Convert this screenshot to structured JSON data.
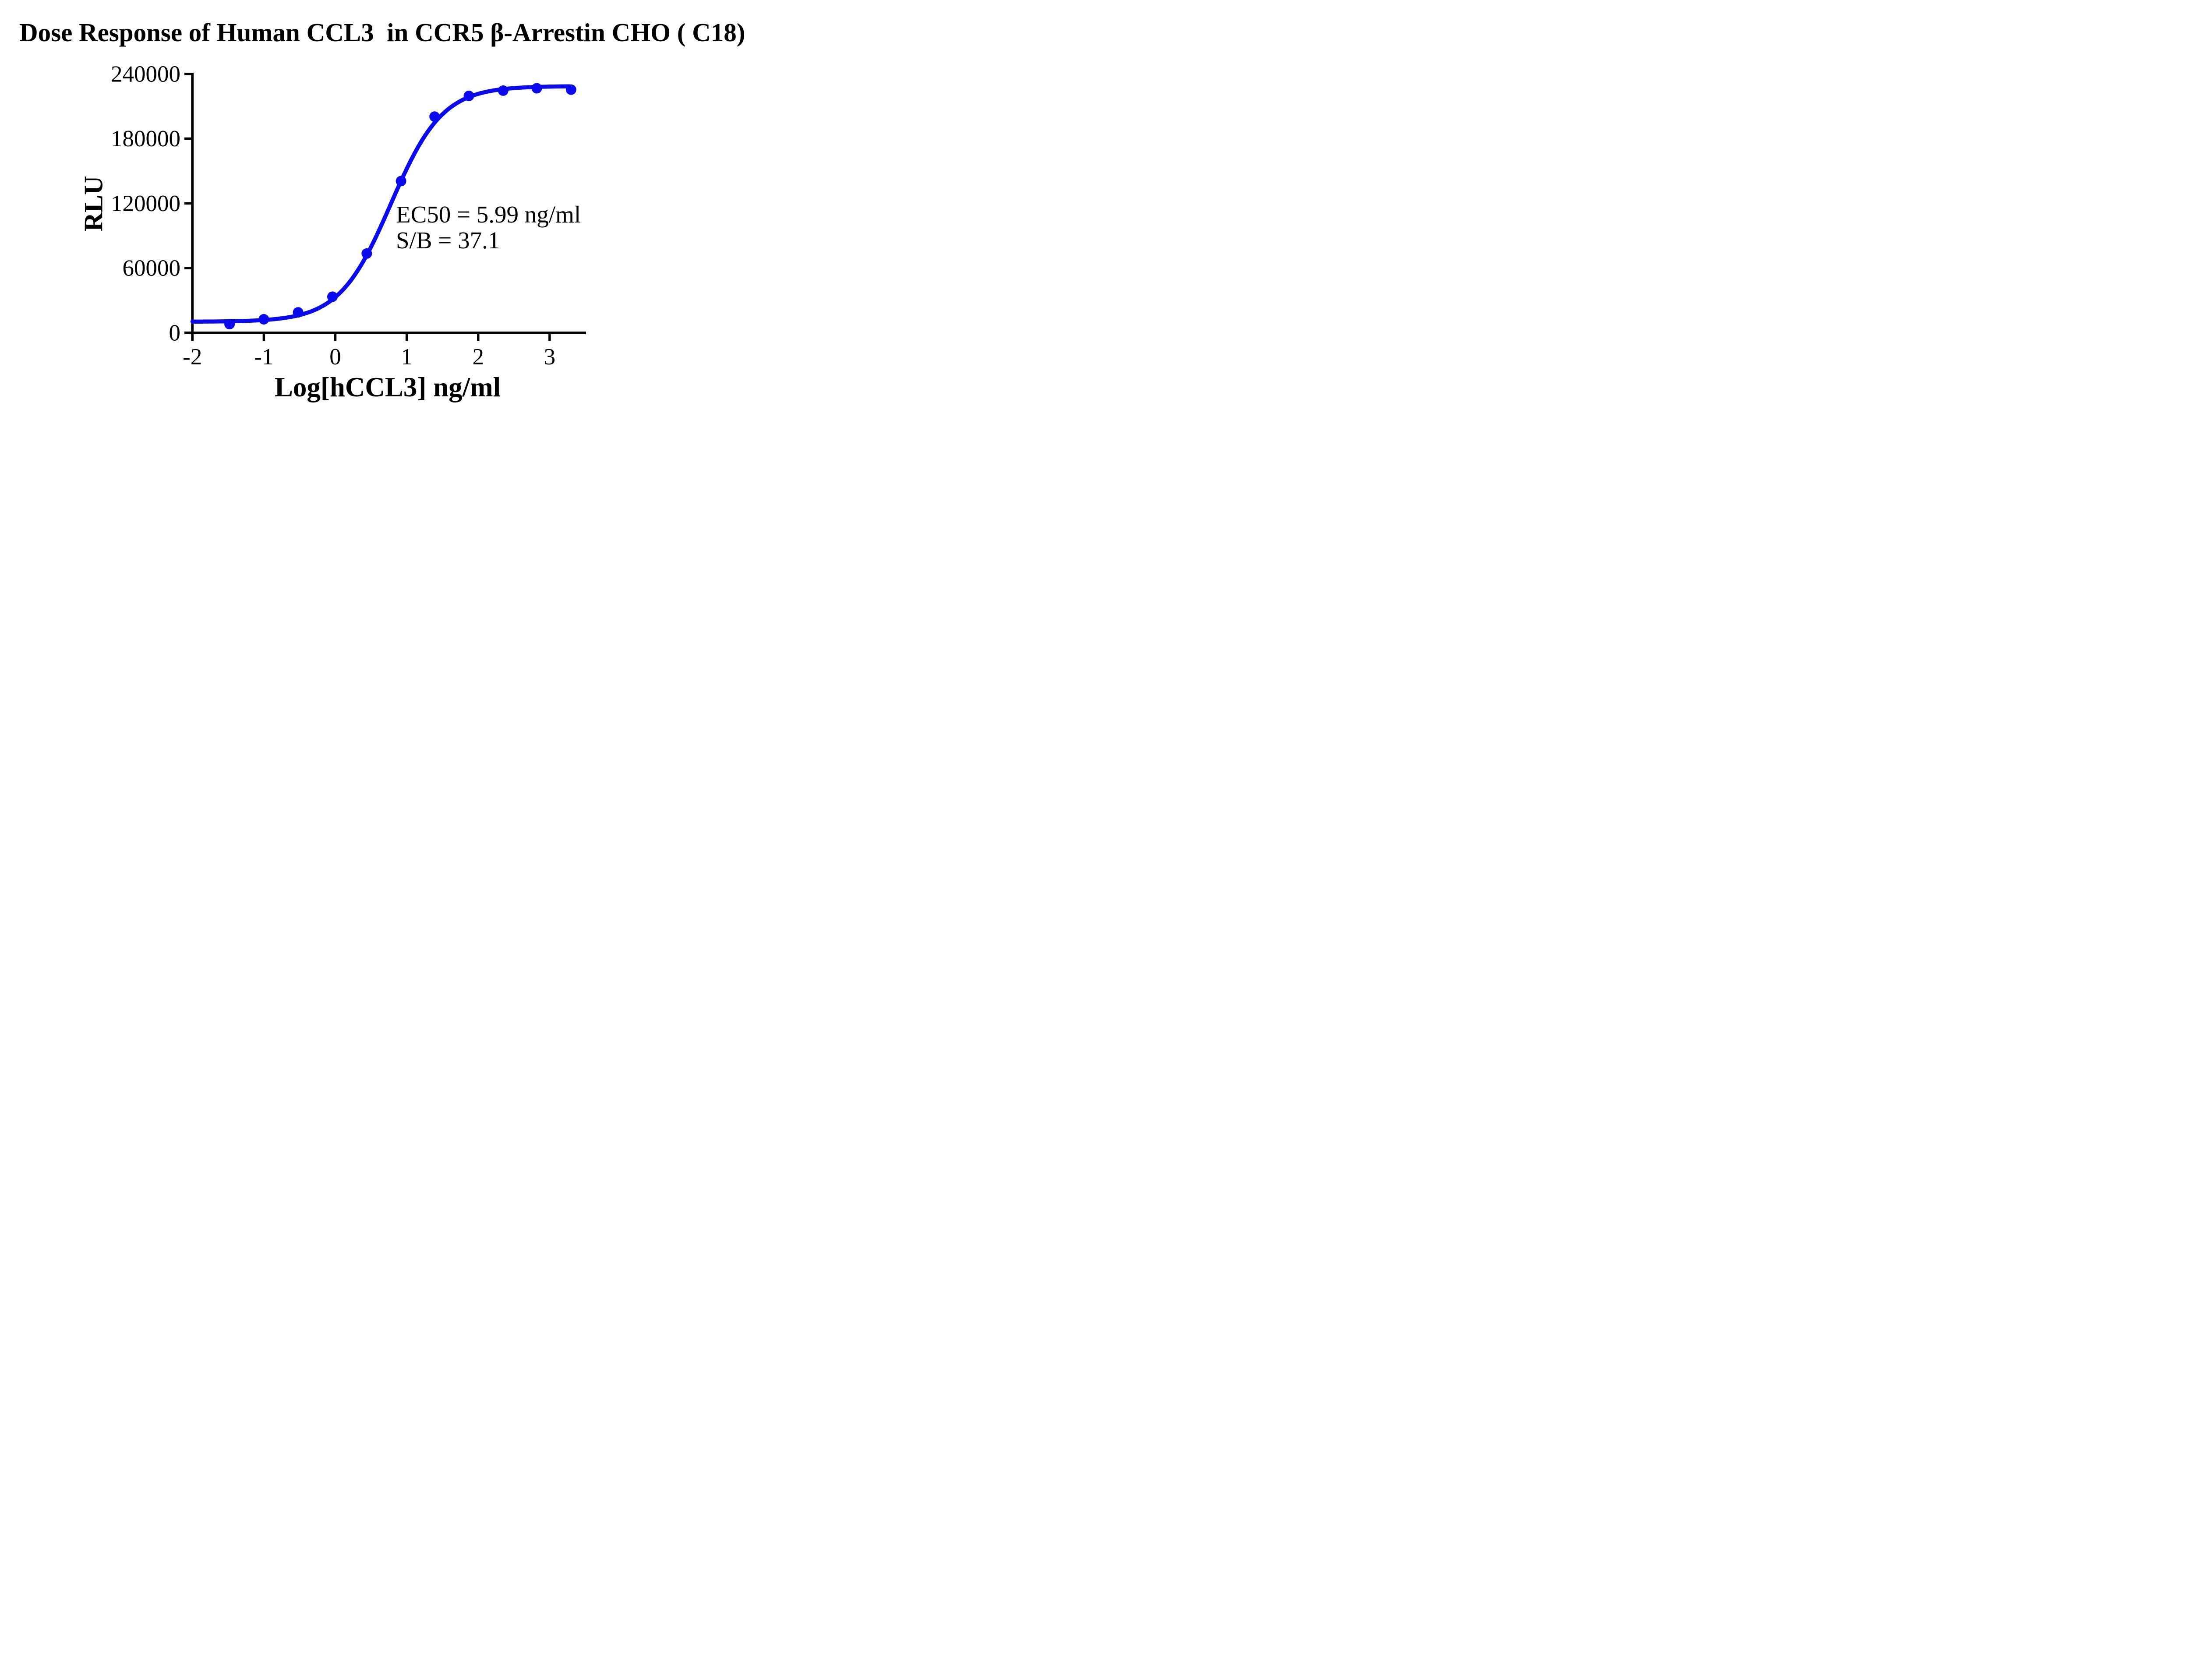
{
  "title": "Dose Response of Human CCL3  in CCR5 β-Arrestin CHO ( C18)",
  "annotation": {
    "line1": "EC50 = 5.99 ng/ml",
    "line2": "S/B = 37.1"
  },
  "chart_data": {
    "type": "line",
    "title": "Dose Response of Human CCL3  in CCR5 β-Arrestin CHO ( C18)",
    "xlabel": "Log[hCCL3] ng/ml",
    "ylabel": "RLU",
    "xlim": [
      -2,
      3.5
    ],
    "ylim": [
      0,
      240000
    ],
    "x_ticks": [
      -2,
      -1,
      0,
      1,
      2,
      3
    ],
    "y_ticks": [
      0,
      60000,
      120000,
      180000,
      240000
    ],
    "grid": false,
    "legend": "none",
    "series": [
      {
        "name": "Human CCL3",
        "color": "#0B0BEE",
        "marker": "circle",
        "x": [
          -1.48,
          -1.0,
          -0.52,
          -0.04,
          0.44,
          0.92,
          1.39,
          1.87,
          2.35,
          2.82,
          3.3
        ],
        "y": [
          8100,
          12600,
          19000,
          33500,
          73500,
          140700,
          200400,
          219600,
          224500,
          226700,
          225400
        ]
      }
    ],
    "fit_curve": {
      "model": "4PL",
      "bottom": 10300,
      "top": 228700,
      "logEC50": 0.7774,
      "hill_slope": 1.2,
      "x_start": -2,
      "x_end": 3.28
    },
    "ec50_ngml": 5.99,
    "s_over_b": 37.1
  },
  "colors": {
    "curve": "#0B0BEE",
    "axis": "#000000",
    "text": "#000000",
    "background": "#FFFFFF"
  }
}
